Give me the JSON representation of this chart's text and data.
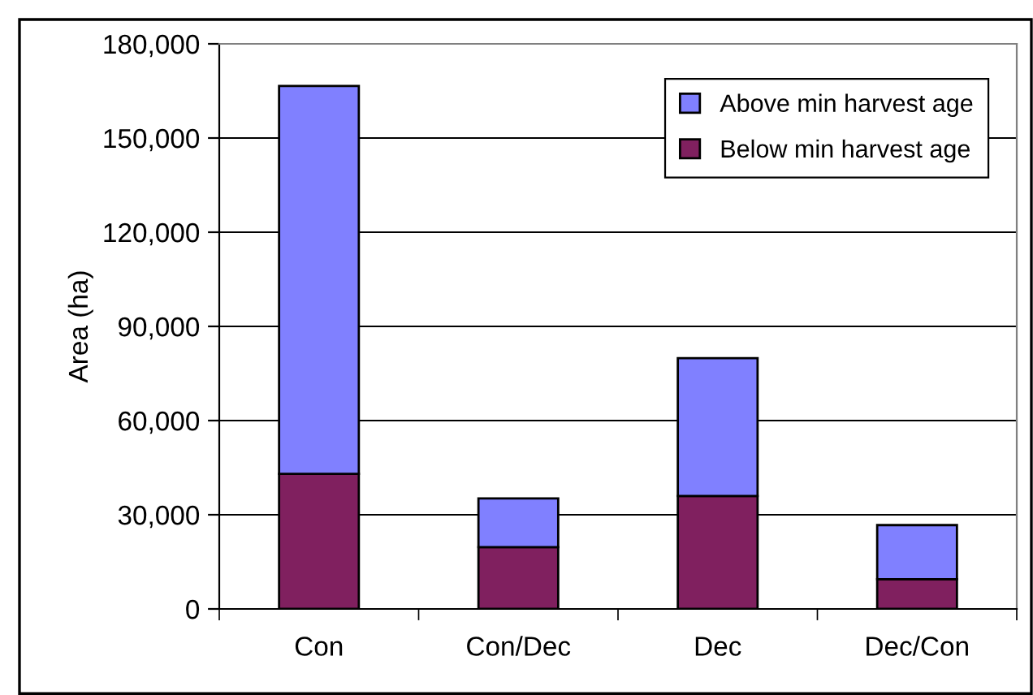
{
  "chart_data": {
    "type": "bar",
    "stacked": true,
    "ylabel": "Area (ha)",
    "categories": [
      "Con",
      "Con/Dec",
      "Dec",
      "Dec/Con"
    ],
    "series": [
      {
        "name": "Below min harvest age",
        "color": "#80205f",
        "values": [
          43000,
          19700,
          36000,
          9500
        ]
      },
      {
        "name": "Above min harvest age",
        "color": "#8080ff",
        "values": [
          123600,
          15500,
          43900,
          17200
        ]
      }
    ],
    "ylim": [
      0,
      180000
    ],
    "yticks": [
      {
        "value": 0,
        "label": "0"
      },
      {
        "value": 30000,
        "label": "30,000"
      },
      {
        "value": 60000,
        "label": "60,000"
      },
      {
        "value": 90000,
        "label": "90,000"
      },
      {
        "value": 120000,
        "label": "120,000"
      },
      {
        "value": 150000,
        "label": "150,000"
      },
      {
        "value": 180000,
        "label": "180,000"
      }
    ],
    "grid": "y",
    "legend": "top right"
  }
}
